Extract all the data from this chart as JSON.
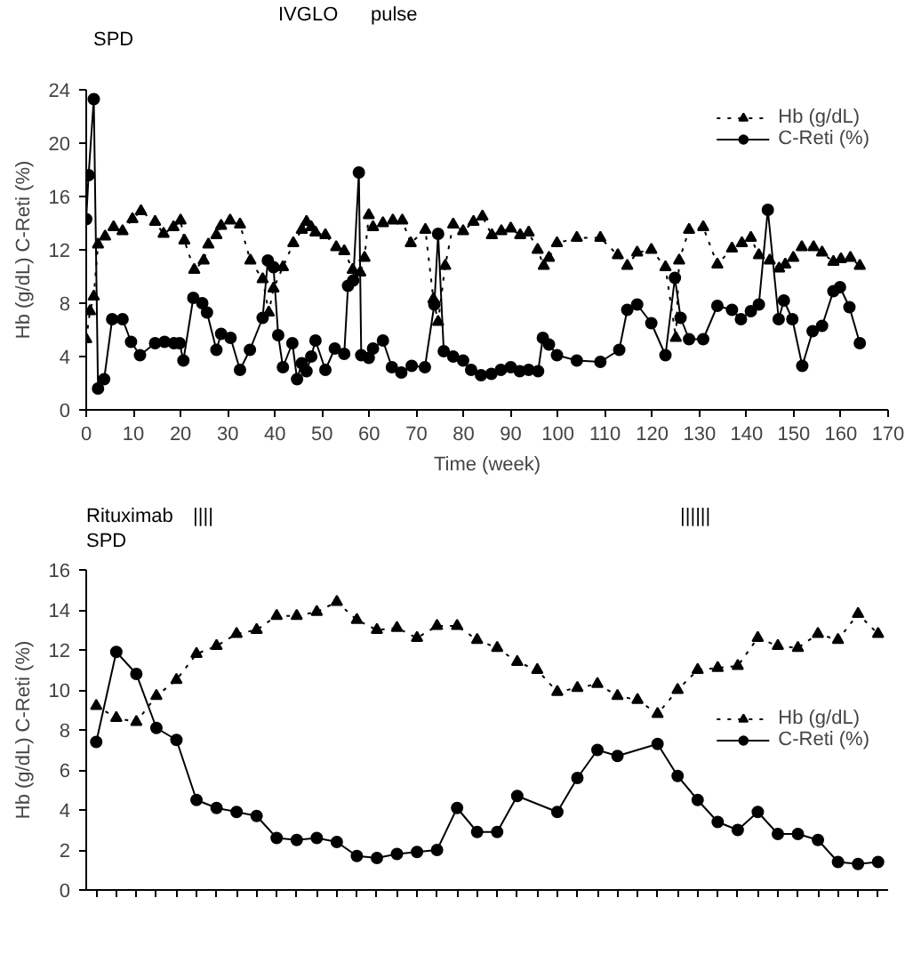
{
  "chart_data": [
    {
      "type": "line",
      "xlabel": "Time (week)",
      "ylabel": "Hb (g/dL) C-Reti (%)",
      "xlim": [
        0,
        170
      ],
      "xticks": [
        0,
        10,
        20,
        30,
        40,
        50,
        60,
        70,
        80,
        90,
        100,
        110,
        120,
        130,
        140,
        150,
        160,
        170
      ],
      "ylim": [
        0,
        24
      ],
      "yticks": [
        0,
        4,
        8,
        12,
        16,
        20,
        24
      ],
      "grid": false,
      "legend": "top right",
      "annotations": [
        "SPD",
        "IVGLO",
        "pulse"
      ],
      "series": [
        {
          "name": "Hb (g/dL)",
          "color": "#000000",
          "marker": "triangle",
          "line_style": "dotted",
          "x": [
            0,
            0.8,
            1.6,
            2.5,
            4,
            5.8,
            7.7,
            9.8,
            11.6,
            14.6,
            16.4,
            18.5,
            20,
            20.8,
            22.9,
            24.9,
            25.9,
            27.6,
            28.6,
            30.5,
            32.6,
            34.8,
            37.4,
            38.7,
            39.7,
            41.7,
            43.9,
            45.7,
            46.7,
            47.7,
            48.6,
            50.7,
            53,
            54.7,
            56.5,
            58.1,
            59,
            59.9,
            60.8,
            62.9,
            65,
            67,
            68.8,
            71.9,
            73.6,
            74.6,
            76.1,
            77.8,
            79.9,
            82.1,
            84,
            86,
            88,
            90,
            92,
            93.8,
            95.7,
            97,
            98.1,
            99.8,
            104,
            109,
            112.7,
            114.7,
            116.8,
            119.8,
            122.8,
            125,
            125.7,
            127.8,
            130.8,
            133.8,
            136.9,
            139,
            140.9,
            142.6,
            144.9,
            146.9,
            148.2,
            149.9,
            151.7,
            154.2,
            156,
            158.4,
            160,
            162,
            164
          ],
          "values": [
            5.3,
            7.4,
            8.5,
            12.4,
            13.0,
            13.7,
            13.4,
            14.3,
            14.9,
            14.1,
            13.2,
            13.7,
            14.2,
            12.7,
            10.5,
            11.2,
            12.4,
            13.1,
            13.8,
            14.2,
            13.9,
            11.2,
            9.8,
            7.3,
            9.1,
            10.7,
            12.5,
            13.5,
            14.1,
            13.7,
            13.3,
            13.1,
            12.2,
            11.9,
            10.5,
            10.3,
            11.4,
            14.6,
            13.7,
            14.0,
            14.2,
            14.2,
            12.5,
            13.5,
            8.3,
            6.6,
            10.8,
            13.9,
            13.4,
            14.1,
            14.5,
            13.1,
            13.4,
            13.6,
            13.1,
            13.3,
            12.0,
            10.8,
            11.4,
            12.5,
            12.9,
            12.9,
            11.6,
            10.8,
            11.8,
            12.0,
            10.7,
            5.4,
            11.2,
            13.5,
            13.7,
            10.9,
            12.1,
            12.5,
            12.9,
            11.6,
            11.2,
            10.6,
            10.9,
            11.4,
            12.2,
            12.2,
            11.8,
            11.1,
            11.3,
            11.4,
            10.8
          ]
        },
        {
          "name": "C-Reti (%)",
          "color": "#000000",
          "marker": "circle",
          "line_style": "solid",
          "x": [
            0,
            0.5,
            1.6,
            2.5,
            3.8,
            5.5,
            7.7,
            9.5,
            11.4,
            14.6,
            16.6,
            18.6,
            19.8,
            20.6,
            22.7,
            24.6,
            25.6,
            27.6,
            28.6,
            30.6,
            32.6,
            34.7,
            37.4,
            38.5,
            39.7,
            40.7,
            41.7,
            43.7,
            44.7,
            45.7,
            46.7,
            47.7,
            48.6,
            50.7,
            52.7,
            54.7,
            55.5,
            56.6,
            57.8,
            58.3,
            59.9,
            60.8,
            62.9,
            64.8,
            66.8,
            69,
            71.8,
            73.8,
            74.6,
            75.8,
            77.8,
            79.9,
            81.6,
            83.7,
            85.9,
            87.9,
            90,
            91.9,
            93.8,
            95.8,
            96.8,
            98.1,
            99.8,
            104,
            109,
            113,
            114.7,
            116.8,
            119.8,
            122.8,
            124.8,
            126,
            127.8,
            130.8,
            133.8,
            136.9,
            138.8,
            140.9,
            142.6,
            144.5,
            146.8,
            147.9,
            149.7,
            151.8,
            154,
            156,
            158.4,
            159.8,
            161.8,
            164
          ],
          "values": [
            14.3,
            17.6,
            23.3,
            1.6,
            2.3,
            6.8,
            6.8,
            5.1,
            4.1,
            5.0,
            5.1,
            5.0,
            5.0,
            3.7,
            8.4,
            8.0,
            7.3,
            4.5,
            5.7,
            5.4,
            3.0,
            4.5,
            6.9,
            11.2,
            10.7,
            5.6,
            3.2,
            5.0,
            2.3,
            3.5,
            2.9,
            4.0,
            5.2,
            3.0,
            4.6,
            4.2,
            9.3,
            9.7,
            17.8,
            4.1,
            3.9,
            4.6,
            5.2,
            3.2,
            2.8,
            3.3,
            3.2,
            7.9,
            13.2,
            4.4,
            4.0,
            3.7,
            3.0,
            2.6,
            2.7,
            3.0,
            3.2,
            2.9,
            3.0,
            2.9,
            5.4,
            4.9,
            4.1,
            3.7,
            3.6,
            4.5,
            7.5,
            7.9,
            6.5,
            4.1,
            9.9,
            6.9,
            5.3,
            5.3,
            7.8,
            7.5,
            6.8,
            7.4,
            7.9,
            15.0,
            6.8,
            8.2,
            6.8,
            3.3,
            5.9,
            6.3,
            8.9,
            9.2,
            7.7,
            5.0
          ]
        }
      ]
    },
    {
      "type": "line",
      "ylabel": "Hb (g/dL) C-Reti (%)",
      "ylim": [
        0,
        16
      ],
      "yticks": [
        0,
        2,
        4,
        6,
        8,
        10,
        12,
        14,
        16
      ],
      "grid": false,
      "legend": "right",
      "tick_labels": "y",
      "annotations": [
        "Rituximab",
        "SPD",
        "||||",
        "||||||"
      ],
      "categories": [
        null,
        null,
        null,
        null,
        null,
        null,
        null,
        null,
        null,
        null,
        null,
        null,
        null,
        null,
        null,
        null,
        null,
        null,
        null,
        null,
        null,
        null,
        null,
        null,
        null,
        null,
        null,
        null,
        null,
        null,
        null,
        null,
        null,
        null,
        null,
        null,
        null,
        null,
        null,
        null
      ],
      "series": [
        {
          "name": "Hb (g/dL)",
          "color": "#000000",
          "marker": "triangle",
          "line_style": "dotted",
          "values": [
            9.2,
            8.6,
            8.4,
            9.7,
            10.5,
            11.8,
            12.2,
            12.8,
            13.0,
            13.7,
            13.7,
            13.9,
            14.4,
            13.5,
            13.0,
            13.1,
            12.6,
            13.2,
            13.2,
            12.5,
            12.1,
            11.4,
            11.0,
            9.9,
            10.1,
            10.3,
            9.7,
            9.5,
            8.8,
            10.0,
            11.0,
            11.1,
            11.2,
            12.6,
            12.2,
            12.1,
            12.8,
            12.5,
            13.8,
            12.8
          ]
        },
        {
          "name": "C-Reti (%)",
          "color": "#000000",
          "marker": "circle",
          "line_style": "solid",
          "values": [
            7.4,
            11.9,
            10.8,
            8.1,
            7.5,
            4.5,
            4.1,
            3.9,
            3.7,
            2.6,
            2.5,
            2.6,
            2.4,
            1.7,
            1.6,
            1.8,
            1.9,
            2.0,
            4.1,
            2.9,
            2.9,
            4.7,
            null,
            3.9,
            5.6,
            7.0,
            6.7,
            null,
            7.3,
            5.7,
            4.5,
            3.4,
            3.0,
            3.9,
            2.8,
            2.8,
            2.5,
            1.4,
            1.3,
            1.4
          ]
        }
      ]
    }
  ]
}
